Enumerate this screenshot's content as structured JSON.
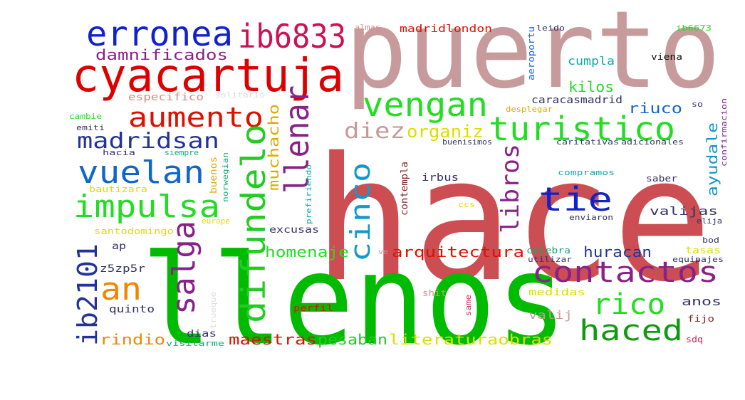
{
  "words": [
    {
      "text": "hace",
      "color": "#cc4e52"
    },
    {
      "text": "llenos",
      "color": "#00bb00"
    },
    {
      "text": "puerto",
      "color": "#c79a9c"
    },
    {
      "text": "cyacartuja",
      "color": "#dd0000"
    },
    {
      "text": "erronea",
      "color": "#1122cc"
    },
    {
      "text": "ib6833",
      "color": "#cc1155"
    },
    {
      "text": "damnificados",
      "color": "#882288"
    },
    {
      "text": "vengan",
      "color": "#22dd22"
    },
    {
      "text": "turistico",
      "color": "#22dd22"
    },
    {
      "text": "aumento",
      "color": "#dd1100"
    },
    {
      "text": "madridsan",
      "color": "#223399"
    },
    {
      "text": "vuelan",
      "color": "#1166cc"
    },
    {
      "text": "impulsa",
      "color": "#22dd22"
    },
    {
      "text": "llenar",
      "color": "#882288"
    },
    {
      "text": "difundelo",
      "color": "#22cc22"
    },
    {
      "text": "diez",
      "color": "#c79a9c"
    },
    {
      "text": "organiz",
      "color": "#dddd00"
    },
    {
      "text": "libros",
      "color": "#882288"
    },
    {
      "text": "tie",
      "color": "#1122cc"
    },
    {
      "text": "contactos",
      "color": "#882288"
    },
    {
      "text": "rico",
      "color": "#22dd22"
    },
    {
      "text": "haced",
      "color": "#119911"
    },
    {
      "text": "salga",
      "color": "#882288"
    },
    {
      "text": "an",
      "color": "#ee8800"
    },
    {
      "text": "ib2101",
      "color": "#223399"
    },
    {
      "text": "cinco",
      "color": "#1199cc"
    },
    {
      "text": "muchacho",
      "color": "#ddaa00"
    },
    {
      "text": "arquitectura",
      "color": "#dd1100"
    },
    {
      "text": "homenaje",
      "color": "#22dd22"
    },
    {
      "text": "huracan",
      "color": "#223399"
    },
    {
      "text": "valijas",
      "color": "#333366"
    },
    {
      "text": "ayudale",
      "color": "#1199cc"
    },
    {
      "text": "kilos",
      "color": "#22dd22"
    },
    {
      "text": "riuco",
      "color": "#1166cc"
    },
    {
      "text": "cumpla",
      "color": "#11aaaa"
    },
    {
      "text": "caracasmadrid",
      "color": "#333366"
    },
    {
      "text": "madridlondon",
      "color": "#dd1100"
    },
    {
      "text": "especifico",
      "color": "#dd8888"
    },
    {
      "text": "solitario",
      "color": "#dddddd"
    },
    {
      "text": "maestras",
      "color": "#dd1100"
    },
    {
      "text": "pesaban",
      "color": "#22cc22"
    },
    {
      "text": "literaturaobras",
      "color": "#dddd00"
    },
    {
      "text": "rindio",
      "color": "#ee8800"
    },
    {
      "text": "valij",
      "color": "#c79a9c"
    },
    {
      "text": "anos",
      "color": "#333366"
    },
    {
      "text": "quinto",
      "color": "#333366"
    },
    {
      "text": "dias",
      "color": "#333366"
    },
    {
      "text": "visitarme",
      "color": "#11aa77"
    },
    {
      "text": "perfil",
      "color": "#dd1100"
    },
    {
      "text": "trueque",
      "color": "#dddddd"
    },
    {
      "text": "shit",
      "color": "#dd8888"
    },
    {
      "text": "same",
      "color": "#dd2255"
    },
    {
      "text": "medidas",
      "color": "#dddd00"
    },
    {
      "text": "fijo",
      "color": "#882222"
    },
    {
      "text": "sdq",
      "color": "#dd2255"
    },
    {
      "text": "z5zp5r",
      "color": "#333366"
    },
    {
      "text": "ap",
      "color": "#333366"
    },
    {
      "text": "ve",
      "color": "#dd8888"
    },
    {
      "text": "excusas",
      "color": "#333366"
    },
    {
      "text": "santodomingo",
      "color": "#dddd00"
    },
    {
      "text": "europe",
      "color": "#dddd00"
    },
    {
      "text": "bautizara",
      "color": "#dddd00"
    },
    {
      "text": "buenos",
      "color": "#ddaa00"
    },
    {
      "text": "norwegian",
      "color": "#11aa77"
    },
    {
      "text": "hacia",
      "color": "#333366"
    },
    {
      "text": "siempre",
      "color": "#11aa77"
    },
    {
      "text": "emiti",
      "color": "#333366"
    },
    {
      "text": "cambie",
      "color": "#22dd22"
    },
    {
      "text": "prefiriendo",
      "color": "#11aaaa"
    },
    {
      "text": "contempla",
      "color": "#882222"
    },
    {
      "text": "irbus",
      "color": "#333366"
    },
    {
      "text": "ccs",
      "color": "#dddd00"
    },
    {
      "text": "buenisimos",
      "color": "#333366"
    },
    {
      "text": "compramos",
      "color": "#11aaaa"
    },
    {
      "text": "caritativas",
      "color": "#333366"
    },
    {
      "text": "adicionales",
      "color": "#333366"
    },
    {
      "text": "saber",
      "color": "#333366"
    },
    {
      "text": "enviaron",
      "color": "#333366"
    },
    {
      "text": "celebra",
      "color": "#11aa77"
    },
    {
      "text": "utilizar",
      "color": "#333366"
    },
    {
      "text": "tasas",
      "color": "#dddd00"
    },
    {
      "text": "equipajes",
      "color": "#333366"
    },
    {
      "text": "elija",
      "color": "#333366"
    },
    {
      "text": "bod",
      "color": "#333366"
    },
    {
      "text": "almas",
      "color": "#dd8888"
    },
    {
      "text": "leido",
      "color": "#333366"
    },
    {
      "text": "aeroportu",
      "color": "#1166cc"
    },
    {
      "text": "viena",
      "color": "#111111"
    },
    {
      "text": "ib6673",
      "color": "#22dd22"
    },
    {
      "text": "desplegar",
      "color": "#ddaa00"
    },
    {
      "text": "so",
      "color": "#333366"
    },
    {
      "text": "confirmacion",
      "color": "#882288"
    }
  ]
}
